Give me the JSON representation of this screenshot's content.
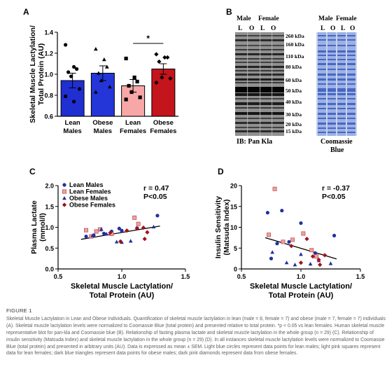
{
  "panels": {
    "A": {
      "label": "A"
    },
    "B": {
      "label": "B"
    },
    "C": {
      "label": "C"
    },
    "D": {
      "label": "D"
    }
  },
  "chart_data": [
    {
      "id": "A",
      "type": "bar",
      "ylabel_lines": [
        "Skeletal Muscle Lactylation/",
        "Total Protein (AU)"
      ],
      "ylim": [
        0.6,
        1.4
      ],
      "yticks": [
        "1.4",
        "1.2",
        "1.0",
        "0.8",
        "0.6"
      ],
      "categories": [
        [
          "Lean",
          "Males"
        ],
        [
          "Obese",
          "Males"
        ],
        [
          "Lean",
          "Females"
        ],
        [
          "Obese",
          "Females"
        ]
      ],
      "values": [
        0.94,
        1.01,
        0.89,
        1.05
      ],
      "sem": [
        0.07,
        0.07,
        0.06,
        0.05
      ],
      "colors": [
        "#1f2fd1",
        "#2436d8",
        "#f7a7a7",
        "#c4141c"
      ],
      "significance": "*",
      "points": [
        [
          1.28,
          1.07,
          1.05,
          1.02,
          0.98,
          0.86,
          0.79,
          0.74
        ],
        [
          1.24,
          1.14,
          1.07,
          1.01,
          0.94,
          0.88,
          0.83
        ],
        [
          1.15,
          0.97,
          0.93,
          0.89,
          0.83,
          0.78,
          0.76
        ],
        [
          1.19,
          1.16,
          1.16,
          1.12,
          0.97,
          0.96,
          0.92
        ]
      ],
      "markers": [
        "circle",
        "triangle",
        "square",
        "diamond"
      ]
    },
    {
      "id": "C",
      "type": "scatter",
      "ylabel_lines": [
        "Plasma Lactate",
        "(mmol/l)"
      ],
      "xlabel_lines": [
        "Skeletal Muscle Lactylation/",
        "Total Protein (AU)"
      ],
      "xlim": [
        0.5,
        1.5
      ],
      "ylim": [
        0.0,
        2.0
      ],
      "xticks": [
        "0.5",
        "1.0",
        "1.5"
      ],
      "yticks": [
        "2.0",
        "1.5",
        "1.0",
        "0.5",
        "0.0"
      ],
      "stat_r": "r = 0.47",
      "stat_p": "P<0.05",
      "legend": [
        "Lean Males",
        "Lean Females",
        "Obese Males",
        "Obese Females"
      ],
      "trend": [
        [
          0.68,
          0.71
        ],
        [
          1.3,
          1.03
        ]
      ],
      "series": [
        {
          "name": "Lean Males",
          "marker": "circle",
          "color": "#24309c",
          "x": [
            0.72,
            0.78,
            0.86,
            0.92,
            0.98,
            1.0,
            1.12,
            1.28
          ],
          "y": [
            0.78,
            0.81,
            0.85,
            0.9,
            0.97,
            0.92,
            0.98,
            1.28
          ]
        },
        {
          "name": "Lean Females",
          "marker": "square",
          "color": "#f2a1a1",
          "x": [
            0.72,
            0.76,
            0.8,
            0.83,
            0.92,
            1.1,
            1.13
          ],
          "y": [
            0.93,
            0.78,
            0.9,
            0.95,
            0.84,
            1.23,
            1.08
          ]
        },
        {
          "name": "Obese Males",
          "marker": "triangle",
          "color": "#24309c",
          "x": [
            0.77,
            0.84,
            0.88,
            0.96,
            1.0,
            1.07,
            1.25
          ],
          "y": [
            0.8,
            0.95,
            0.84,
            0.65,
            0.64,
            0.67,
            1.01
          ]
        },
        {
          "name": "Obese Females",
          "marker": "diamond",
          "color": "#a0121b",
          "x": [
            0.91,
            0.99,
            1.04,
            1.12,
            1.17,
            1.18,
            1.2
          ],
          "y": [
            0.87,
            0.66,
            0.92,
            0.97,
            0.99,
            0.72,
            0.88
          ]
        }
      ]
    },
    {
      "id": "D",
      "type": "scatter",
      "ylabel_lines": [
        "Insulin Sensitivity",
        "(Matsuda Index)"
      ],
      "xlabel_lines": [
        "Skeletal Muscle Lactylation/",
        "Total Protein (AU)"
      ],
      "xlim": [
        0.5,
        1.5
      ],
      "ylim": [
        0,
        20
      ],
      "xticks": [
        "0.5",
        "1.0",
        "1.5"
      ],
      "yticks": [
        "20",
        "15",
        "10",
        "5",
        "0"
      ],
      "stat_r": "r = -0.37",
      "stat_p": "P<0.05",
      "trend": [
        [
          0.7,
          7.5
        ],
        [
          1.3,
          2.4
        ]
      ],
      "series": [
        {
          "name": "Lean Males",
          "marker": "circle",
          "color": "#24309c",
          "x": [
            0.72,
            0.75,
            0.8,
            0.84,
            0.9,
            1.0,
            1.12,
            1.28
          ],
          "y": [
            13.5,
            2.5,
            6.1,
            14.0,
            6.5,
            11.0,
            3.8,
            8.0
          ]
        },
        {
          "name": "Lean Females",
          "marker": "square",
          "color": "#f2a1a1",
          "x": [
            0.73,
            0.78,
            0.85,
            0.93,
            1.02,
            1.09,
            1.13
          ],
          "y": [
            8.2,
            19.2,
            6.5,
            7.0,
            8.5,
            4.5,
            3.0
          ]
        },
        {
          "name": "Obese Males",
          "marker": "triangle",
          "color": "#24309c",
          "x": [
            0.76,
            0.88,
            0.95,
            1.0,
            1.08,
            1.15,
            1.25
          ],
          "y": [
            4.0,
            1.5,
            1.0,
            3.5,
            1.2,
            2.0,
            1.3
          ]
        },
        {
          "name": "Obese Females",
          "marker": "diamond",
          "color": "#a0121b",
          "x": [
            0.92,
            1.0,
            1.05,
            1.1,
            1.15,
            1.16,
            1.2
          ],
          "y": [
            5.5,
            1.5,
            7.2,
            3.0,
            2.2,
            1.0,
            3.3
          ]
        }
      ]
    }
  ],
  "blot": {
    "group_left": [
      "Male",
      "Female"
    ],
    "group_right": [
      "Male",
      "Female"
    ],
    "lanes": [
      "L",
      "O",
      "L",
      "O"
    ],
    "mw": [
      "260 kDa",
      "160 kDa",
      "110 kDa",
      "80 kDa",
      "60 kDa",
      "50 kDa",
      "40 kDa",
      "30 kDa",
      "20 kDa",
      "15 kDa"
    ],
    "label_left": "IB: Pan Kla",
    "label_right": [
      "Coomassie",
      "Blue"
    ]
  },
  "caption": {
    "title": "FIGURE 1",
    "subtitle": "Skeletal Muscle Lactylation in Lean and Obese Individuals.",
    "body": " Quantification of skeletal muscle lactylation in lean (male = 8, female = 7) and obese (male = 7, female = 7) individuals (A). Skeletal muscle lactylation levels were normalized to Coomassie Blue (total protein) and presented relative to total protein. *p < 0.05 vs lean females. Human skeletal muscle representative blot for pan-kla and Coomassie blue (B). Relationship of fasting plasma lactate and skeletal muscle lactylation in the whole group (n = 29) (C). Relationship of insulin sensitivity (Matsuda Index) and skeletal muscle lactylation in the whole group (n = 29) (D). In all instances skeletal muscle lactylation levels were normalized to Coomassie Blue (total protein) and presented in arbitrary units (AU). Data is expressed as mean ± SEM. Light blue circles represent data points for lean males; light pink squares represent data for lean females; dark blue triangles represent data points for obese males; dark pink diamonds represent data from obese females."
  }
}
